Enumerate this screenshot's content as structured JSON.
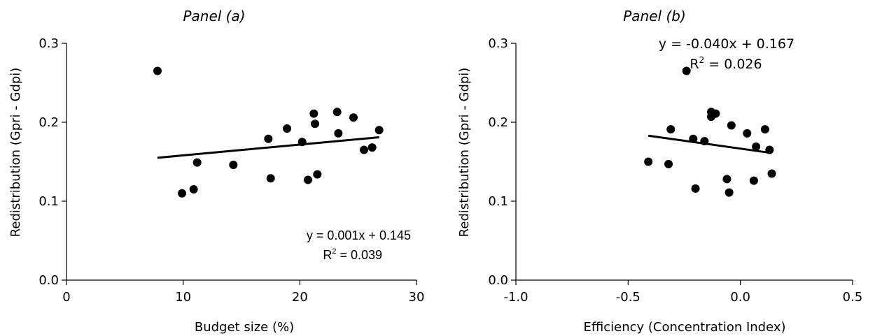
{
  "chart_data": [
    {
      "type": "scatter",
      "title": "Panel (a)",
      "xlabel": "Budget size (%)",
      "ylabel": "Redistribution (Gpri - Gdpi)",
      "xlim": [
        0,
        30
      ],
      "ylim": [
        0,
        0.3
      ],
      "xticks": [
        "0",
        "10",
        "20",
        "30"
      ],
      "yticks": [
        "0.0",
        "0.1",
        "0.2",
        "0.3"
      ],
      "points": [
        {
          "x": 7.8,
          "y": 0.265
        },
        {
          "x": 9.9,
          "y": 0.11
        },
        {
          "x": 10.9,
          "y": 0.115
        },
        {
          "x": 11.2,
          "y": 0.149
        },
        {
          "x": 14.3,
          "y": 0.146
        },
        {
          "x": 17.3,
          "y": 0.179
        },
        {
          "x": 17.5,
          "y": 0.129
        },
        {
          "x": 18.9,
          "y": 0.192
        },
        {
          "x": 20.2,
          "y": 0.175
        },
        {
          "x": 20.7,
          "y": 0.127
        },
        {
          "x": 21.2,
          "y": 0.211
        },
        {
          "x": 21.3,
          "y": 0.198
        },
        {
          "x": 21.5,
          "y": 0.134
        },
        {
          "x": 23.2,
          "y": 0.213
        },
        {
          "x": 23.3,
          "y": 0.186
        },
        {
          "x": 24.6,
          "y": 0.206
        },
        {
          "x": 25.5,
          "y": 0.165
        },
        {
          "x": 26.2,
          "y": 0.168
        },
        {
          "x": 26.8,
          "y": 0.19
        }
      ],
      "trendline": {
        "x": [
          7.8,
          26.8
        ],
        "y": [
          0.155,
          0.181
        ]
      },
      "equation": "y = 0.001x + 0.145",
      "r2_prefix": "R",
      "r2_sup": "2",
      "r2_value": " = 0.039"
    },
    {
      "type": "scatter",
      "title": "Panel (b)",
      "xlabel": "Efficiency (Concentration Index)",
      "ylabel": "Redistribution (Gpri - Gdpi)",
      "xlim": [
        -1.0,
        0.5
      ],
      "ylim": [
        0,
        0.3
      ],
      "xticks": [
        "-1.0",
        "-0.5",
        "0.0",
        "0.5"
      ],
      "yticks": [
        "0.0",
        "0.1",
        "0.2",
        "0.3"
      ],
      "points": [
        {
          "x": -0.41,
          "y": 0.15
        },
        {
          "x": -0.31,
          "y": 0.191
        },
        {
          "x": -0.32,
          "y": 0.147
        },
        {
          "x": -0.24,
          "y": 0.265
        },
        {
          "x": -0.21,
          "y": 0.179
        },
        {
          "x": -0.2,
          "y": 0.116
        },
        {
          "x": -0.16,
          "y": 0.176
        },
        {
          "x": -0.13,
          "y": 0.213
        },
        {
          "x": -0.13,
          "y": 0.207
        },
        {
          "x": -0.11,
          "y": 0.211
        },
        {
          "x": -0.06,
          "y": 0.128
        },
        {
          "x": -0.05,
          "y": 0.111
        },
        {
          "x": -0.04,
          "y": 0.196
        },
        {
          "x": 0.03,
          "y": 0.186
        },
        {
          "x": 0.06,
          "y": 0.126
        },
        {
          "x": 0.07,
          "y": 0.169
        },
        {
          "x": 0.11,
          "y": 0.191
        },
        {
          "x": 0.13,
          "y": 0.165
        },
        {
          "x": 0.14,
          "y": 0.135
        }
      ],
      "trendline": {
        "x": [
          -0.41,
          0.14
        ],
        "y": [
          0.183,
          0.161
        ]
      },
      "equation": "y = -0.040x + 0.167",
      "r2_prefix": "R",
      "r2_sup": "2",
      "r2_value": " = 0.026"
    }
  ]
}
